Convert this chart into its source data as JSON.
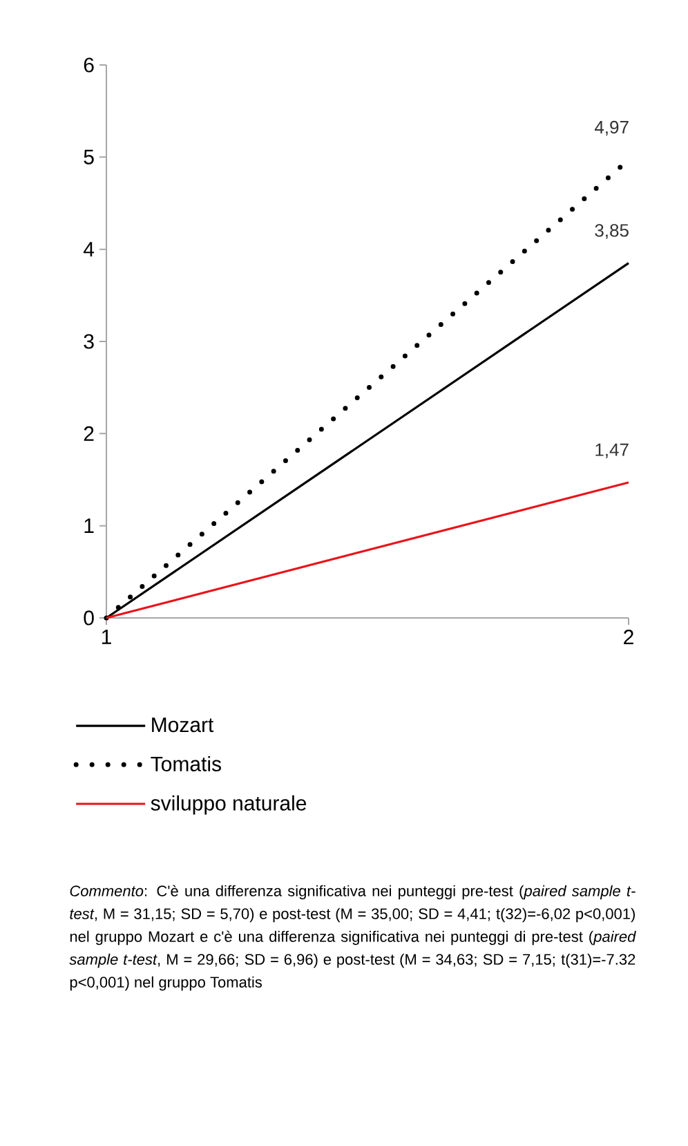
{
  "chart_data": {
    "type": "line",
    "x": [
      1,
      2
    ],
    "xlim": [
      1,
      2
    ],
    "xticks": [
      1,
      2
    ],
    "ylim": [
      0,
      6
    ],
    "yticks": [
      0,
      1,
      2,
      3,
      4,
      5,
      6
    ],
    "legend": "bottom",
    "series": [
      {
        "name": "Mozart",
        "color": "#000000",
        "line_style": "solid",
        "values": [
          0,
          3.85
        ],
        "value_labels": [
          null,
          "3,85"
        ]
      },
      {
        "name": "Tomatis",
        "color": "#000000",
        "line_style": "dotted",
        "values": [
          0,
          4.97
        ],
        "value_labels": [
          null,
          "4,97"
        ]
      },
      {
        "name": "sviluppo naturale",
        "color": "#e8141b",
        "line_style": "solid",
        "values": [
          0,
          1.47
        ],
        "value_labels": [
          null,
          "1,47"
        ]
      }
    ],
    "annotations": [
      "*Commento*: C'è una differenza significativa nei punteggi pre-test (*paired sample t-test*, M = 31,15; SD = 5,70) e post-test (M = 35,00; SD = 4,41; t(32)=-6,02 p<0,001) nel gruppo Mozart e c'è una differenza significativa nei punteggi di pre-test (*paired sample t-test*, M = 29,66; SD = 6,96) e post-test (M = 34,63; SD = 7,15; t(31)=-7.32 p<0,001) nel gruppo Tomatis"
    ]
  }
}
